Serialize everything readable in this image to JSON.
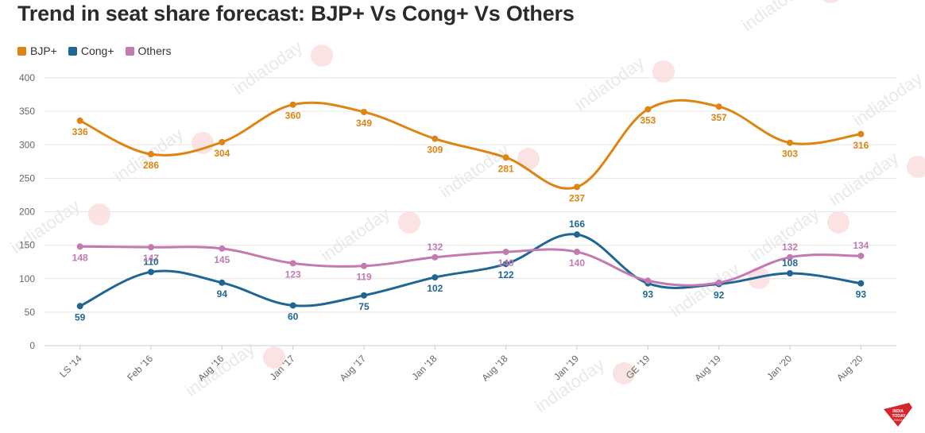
{
  "title": "Trend in seat share forecast: BJP+ Vs Cong+ Vs Others",
  "watermark": "indiatoday",
  "logo": {
    "line1": "INDIA",
    "line2": "TODAY",
    "line3": "GROUP",
    "color": "#d6252b"
  },
  "chart_data": {
    "type": "line",
    "categories": [
      "LS '14",
      "Feb '16",
      "Aug '16",
      "Jan '17",
      "Aug '17",
      "Jan '18",
      "Aug '18",
      "Jan '19",
      "GE '19",
      "Aug '19",
      "Jan '20",
      "Aug '20"
    ],
    "ylim": [
      0,
      400
    ],
    "yticks": [
      0,
      50,
      100,
      150,
      200,
      250,
      300,
      350,
      400
    ],
    "grid": true,
    "legend_position": "top-left",
    "series": [
      {
        "name": "BJP+",
        "color": "#de8412",
        "values": [
          336,
          286,
          304,
          360,
          349,
          309,
          281,
          237,
          353,
          357,
          303,
          316
        ]
      },
      {
        "name": "Cong+",
        "color": "#1f6694",
        "values": [
          59,
          110,
          94,
          60,
          75,
          102,
          122,
          166,
          93,
          92,
          108,
          93
        ]
      },
      {
        "name": "Others",
        "color": "#c27ab0",
        "values": [
          148,
          147,
          145,
          123,
          119,
          132,
          140,
          140,
          97,
          94,
          132,
          134
        ]
      }
    ]
  }
}
